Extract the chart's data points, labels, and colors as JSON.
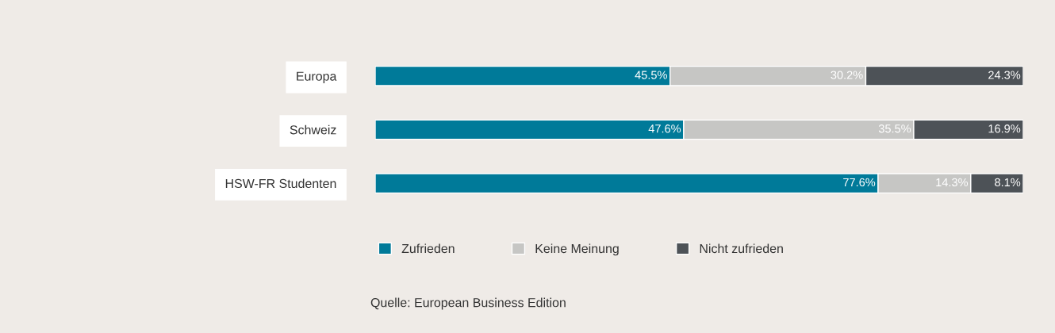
{
  "chart_data": {
    "type": "bar",
    "orientation": "horizontal",
    "stacked": true,
    "legend": "bottom",
    "categories": [
      "Europa",
      "Schweiz",
      "HSW-FR Studenten"
    ],
    "series": [
      {
        "name": "Zufrieden",
        "color": "#007a99",
        "values": [
          45.5,
          47.6,
          77.6
        ],
        "value_labels": [
          "45.5%",
          "47.6%",
          "77.6%"
        ]
      },
      {
        "name": "Keine Meinung",
        "color": "#c6c6c4",
        "values": [
          30.2,
          35.5,
          14.3
        ],
        "value_labels": [
          "30.2%",
          "35.5%",
          "14.3%"
        ]
      },
      {
        "name": "Nicht zufrieden",
        "color": "#4d5257",
        "values": [
          24.3,
          16.9,
          8.1
        ],
        "value_labels": [
          "24.3%",
          "16.9%",
          "8.1%"
        ]
      }
    ],
    "annotations": [
      "Quelle: European Business Edition"
    ]
  }
}
